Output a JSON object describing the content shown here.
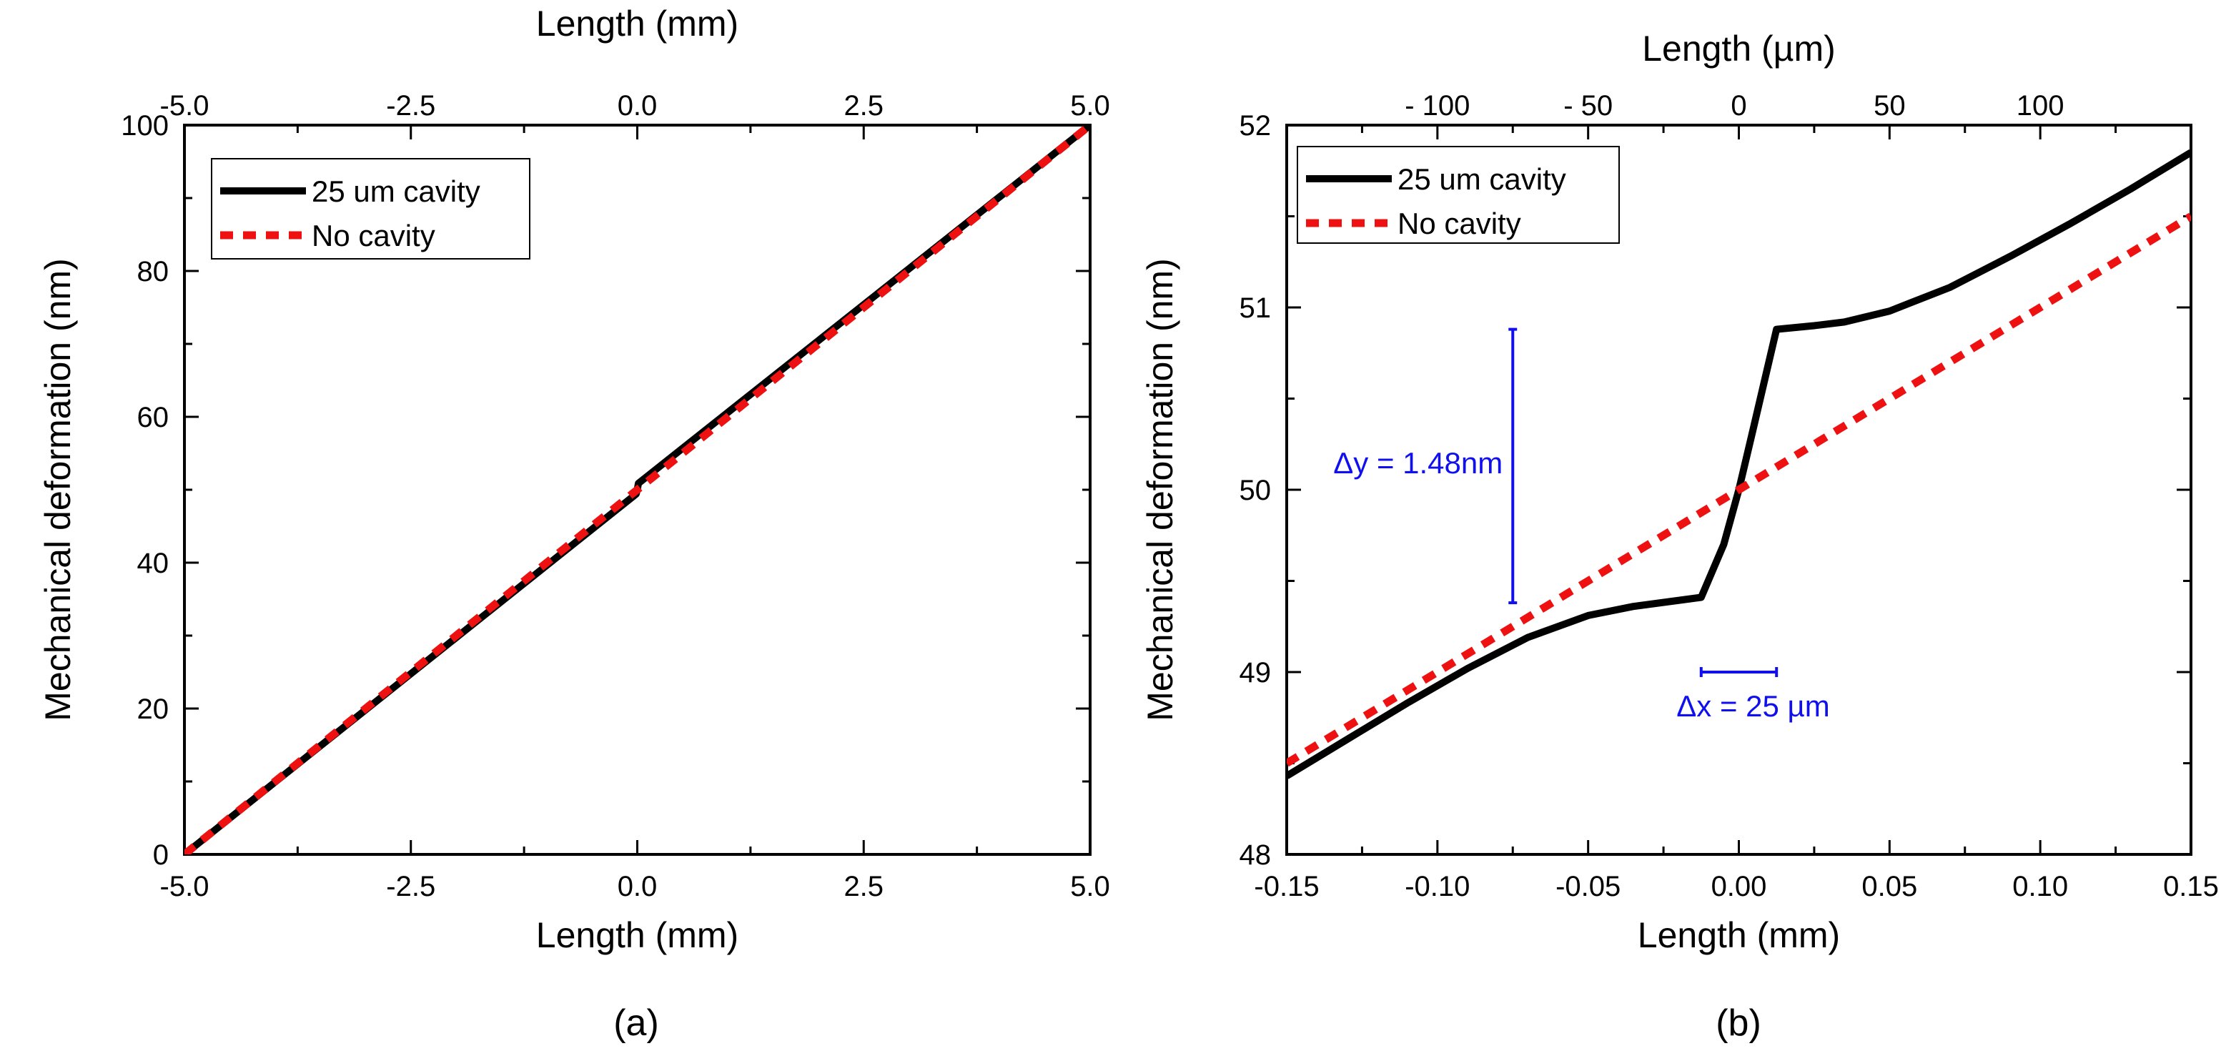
{
  "chart_data": [
    {
      "type": "line",
      "panel_label": "(a)",
      "xlabel": "Length (mm)",
      "x2label": "Length (mm)",
      "ylabel": "Mechanical deformation (nm)",
      "xlim": [
        -5.0,
        5.0
      ],
      "ylim": [
        0,
        100
      ],
      "x_ticks": [
        "-5.0",
        "-2.5",
        "0.0",
        "2.5",
        "5.0"
      ],
      "x2_ticks": [
        "-5.0",
        "-2.5",
        "0.0",
        "2.5",
        "5.0"
      ],
      "y_ticks": [
        "0",
        "20",
        "40",
        "60",
        "80",
        "100"
      ],
      "grid": false,
      "legend": "top-left",
      "series": [
        {
          "name": "25 um cavity",
          "color": "#000000",
          "style": "solid",
          "x": [
            -5.0,
            -0.0125,
            0.0,
            0.0125,
            5.0
          ],
          "y": [
            0.0,
            49.41,
            50.0,
            50.88,
            100.0
          ]
        },
        {
          "name": "No cavity",
          "color": "#ee1111",
          "style": "dashed",
          "x": [
            -5.0,
            5.0
          ],
          "y": [
            0.0,
            100.0
          ]
        }
      ]
    },
    {
      "type": "line",
      "panel_label": "(b)",
      "xlabel": "Length (mm)",
      "x2label": "Length (µm)",
      "ylabel": "Mechanical deformation (nm)",
      "xlim": [
        -0.15,
        0.15
      ],
      "ylim": [
        48,
        52
      ],
      "x_ticks": [
        "-0.15",
        "-0.10",
        "-0.05",
        "0.00",
        "0.05",
        "0.10",
        "0.15"
      ],
      "x2_ticks": [
        "- 100",
        "- 50",
        "0",
        "50",
        "100"
      ],
      "y_ticks": [
        "48",
        "49",
        "50",
        "51",
        "52"
      ],
      "grid": false,
      "legend": "top-left",
      "series": [
        {
          "name": "25 um cavity",
          "color": "#000000",
          "style": "solid",
          "x": [
            -0.15,
            -0.13,
            -0.11,
            -0.09,
            -0.07,
            -0.05,
            -0.035,
            -0.0125,
            -0.005,
            0.0,
            0.005,
            0.0125,
            0.025,
            0.035,
            0.05,
            0.07,
            0.09,
            0.11,
            0.13,
            0.15
          ],
          "y": [
            48.43,
            48.63,
            48.83,
            49.02,
            49.19,
            49.31,
            49.36,
            49.41,
            49.7,
            50.0,
            50.35,
            50.88,
            50.9,
            50.92,
            50.98,
            51.11,
            51.28,
            51.46,
            51.65,
            51.85
          ]
        },
        {
          "name": "No cavity",
          "color": "#ee1111",
          "style": "dashed",
          "x": [
            -0.15,
            0.15
          ],
          "y": [
            48.5,
            51.5
          ]
        }
      ],
      "annotations": [
        {
          "label": "Δy = 1.48nm",
          "x": -0.075,
          "y_from": 49.38,
          "y_to": 50.88,
          "orientation": "vertical",
          "color": "#1010ee"
        },
        {
          "label": "Δx = 25 µm",
          "y": 49.0,
          "x_from": -0.0125,
          "x_to": 0.0125,
          "orientation": "horizontal",
          "color": "#1010ee"
        }
      ]
    }
  ]
}
